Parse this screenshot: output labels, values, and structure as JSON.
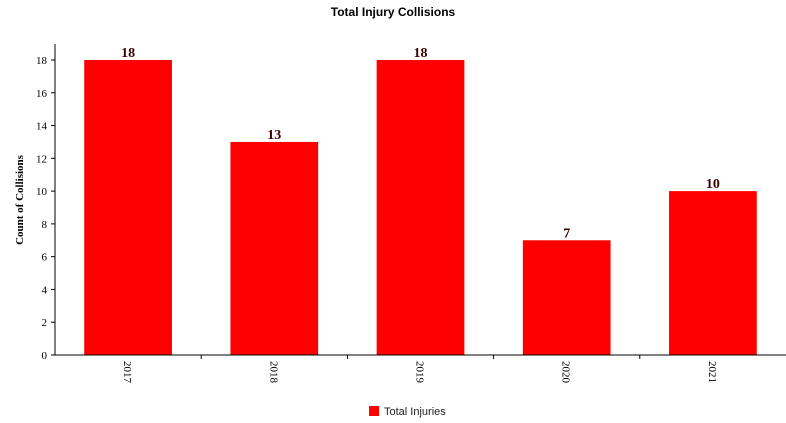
{
  "chart_data": {
    "type": "bar",
    "title": "Total Injury Collisions",
    "ylabel": "Count of Collisions",
    "xlabel": "",
    "categories": [
      "2017",
      "2018",
      "2019",
      "2020",
      "2021"
    ],
    "series": [
      {
        "name": "Total Injuries",
        "values": [
          18,
          13,
          18,
          7,
          10
        ],
        "color": "#ff0000"
      }
    ],
    "ylim": [
      0,
      18
    ],
    "yticks": [
      0,
      2,
      4,
      6,
      8,
      10,
      12,
      14,
      16,
      18
    ],
    "grid": false,
    "legend_position": "bottom-center",
    "data_labels": true
  }
}
